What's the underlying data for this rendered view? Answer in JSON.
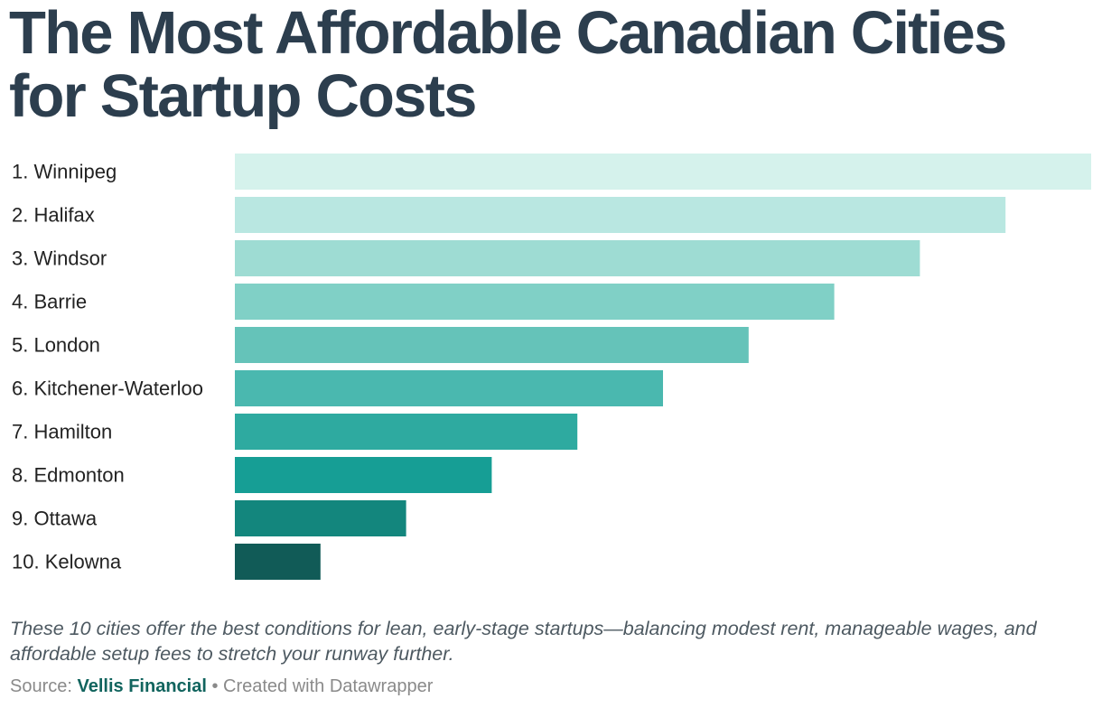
{
  "title": "The Most Affordable Canadian Cities for Startup Costs",
  "description": "These 10 cities offer the best conditions for lean, early-stage startups—balancing modest rent, manageable wages, and affordable setup fees to stretch your runway further.",
  "footer": {
    "source_label": "Source:",
    "source_name": "Vellis Financial",
    "created_with": "• Created with Datawrapper"
  },
  "chart_data": {
    "type": "bar",
    "orientation": "horizontal",
    "categories": [
      "1. Winnipeg",
      "2. Halifax",
      "3. Windsor",
      "4. Barrie",
      "5. London",
      "6. Kitchener-Waterloo",
      "7. Hamilton",
      "8. Edmonton",
      "9. Ottawa",
      "10. Kelowna"
    ],
    "values": [
      10,
      9,
      8,
      7,
      6,
      5,
      4,
      3,
      2,
      1
    ],
    "xlim": [
      0,
      10
    ],
    "colors": [
      "#d5f2ec",
      "#b9e7e1",
      "#9edcd3",
      "#80d0c6",
      "#65c3b9",
      "#4ab8af",
      "#2eaaa0",
      "#169e95",
      "#13867d",
      "#115b57"
    ],
    "grid": false,
    "legend": "none",
    "value_labels": false
  }
}
